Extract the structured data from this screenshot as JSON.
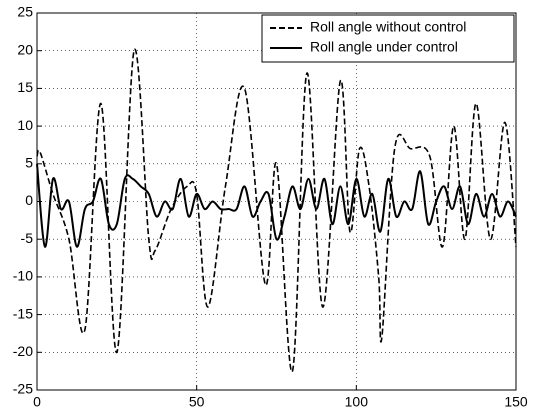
{
  "chart_data": {
    "type": "line",
    "xlim": [
      0,
      150
    ],
    "xticks": [
      0,
      50,
      100,
      150
    ],
    "ylim": [
      -25,
      25
    ],
    "yticks": [
      -25,
      -20,
      -15,
      -10,
      -5,
      0,
      5,
      10,
      15,
      20,
      25
    ],
    "grid": true,
    "legend": "upper right",
    "series": [
      {
        "name": "Roll angle without control",
        "color": "#000000",
        "style": "dashed",
        "x": [
          0,
          1,
          5,
          10,
          15,
          20,
          25,
          30.4,
          35,
          37,
          42,
          47,
          50,
          53.5,
          59,
          65,
          71.5,
          75,
          80,
          84.5,
          89.5,
          95,
          98,
          101,
          104,
          107,
          108,
          112,
          117,
          123,
          127,
          130.5,
          134,
          137.5,
          142,
          146.5,
          150
        ],
        "values": [
          6,
          6.5,
          1,
          -5,
          -17,
          13,
          -20,
          20,
          -5,
          -6.5,
          -1,
          2,
          1,
          -14,
          2,
          15,
          -11,
          5,
          -22.5,
          17,
          -14,
          16,
          -4,
          7,
          2,
          -10,
          -18,
          7,
          7,
          6,
          -6,
          10,
          -5,
          13,
          -5,
          10.5,
          -6
        ]
      },
      {
        "name": "Roll angle under control",
        "color": "#000000",
        "style": "solid",
        "x": [
          0,
          2.5,
          5,
          7.5,
          10,
          12.5,
          15,
          17.5,
          20,
          22.5,
          25,
          27.5,
          30,
          32.5,
          35,
          37.5,
          40,
          42.5,
          45,
          47.5,
          50,
          52.5,
          55,
          57.5,
          60,
          62.5,
          65,
          67.5,
          70,
          72.5,
          75,
          77.5,
          80,
          82.5,
          85,
          87.5,
          90,
          92.5,
          95,
          97.5,
          100,
          102.5,
          105,
          107.5,
          110,
          112.5,
          115,
          117.5,
          120,
          122.5,
          125,
          127.5,
          130,
          132.5,
          135,
          137.5,
          140,
          142.5,
          145,
          147.5,
          150
        ],
        "values": [
          5,
          -6,
          3,
          -1,
          0,
          -6,
          -1,
          0,
          3,
          -3,
          -3,
          3,
          3,
          2,
          1,
          -2,
          0,
          -1,
          3,
          -2,
          1,
          -1,
          0,
          -1,
          -1,
          -1,
          2,
          -2,
          0,
          1,
          -5,
          -2,
          2,
          -1,
          3,
          -1,
          3,
          -3,
          2,
          -3,
          3,
          -2,
          1,
          -4,
          3,
          -2,
          0,
          -1,
          4,
          -3,
          0,
          2,
          -1,
          2,
          -3,
          1,
          -2,
          1,
          -2,
          0,
          -2
        ]
      }
    ]
  }
}
